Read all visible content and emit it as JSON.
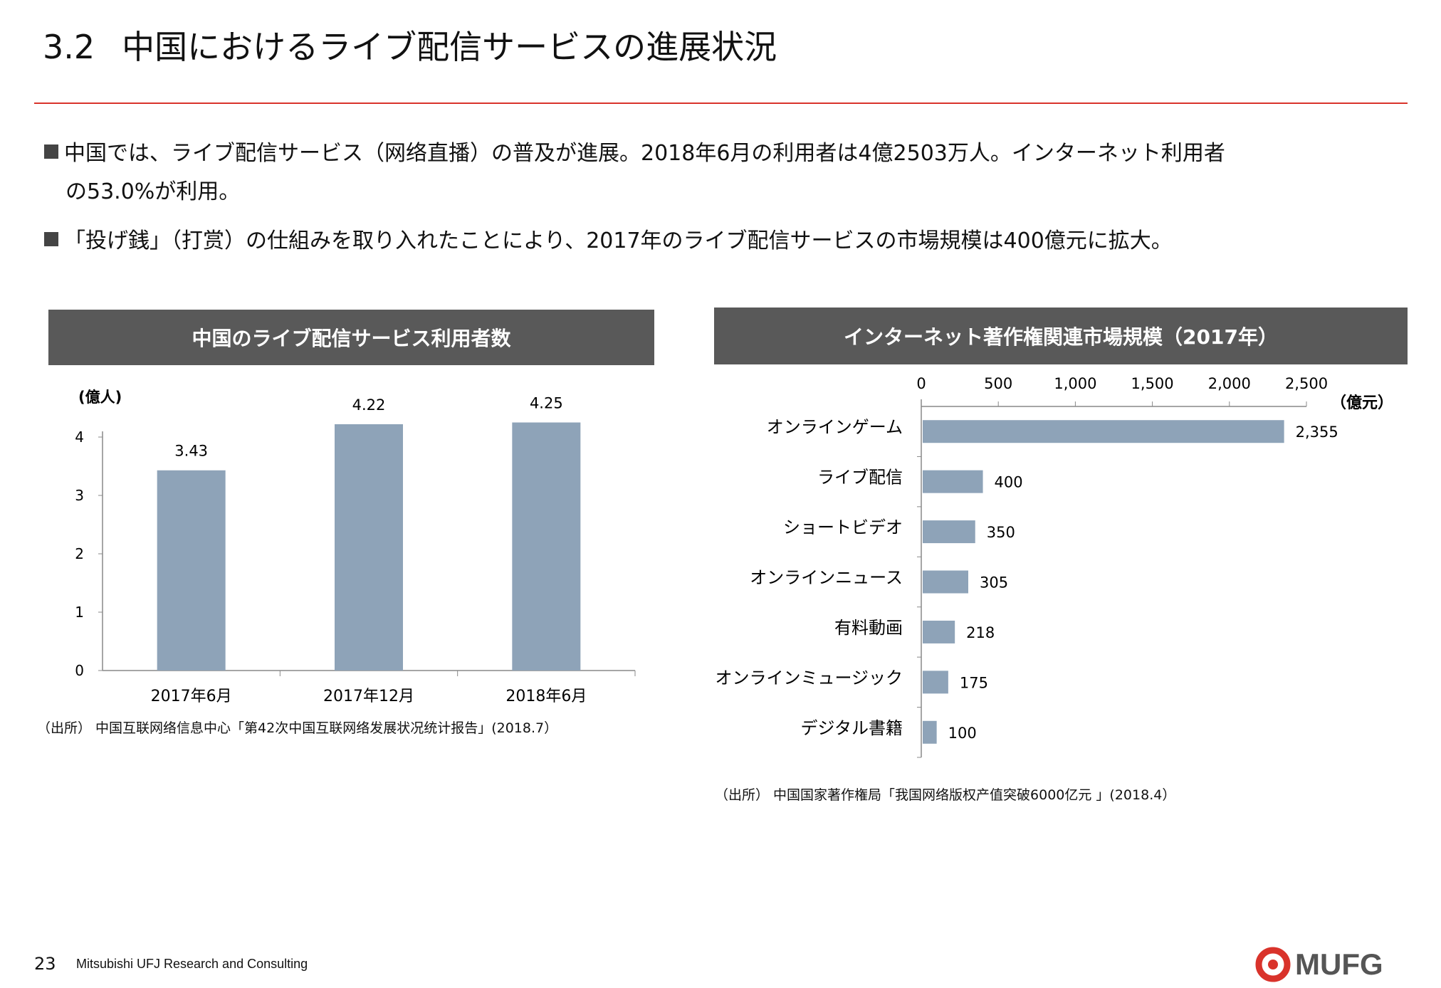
{
  "title": {
    "number": "3.2",
    "text": "中国におけるライブ配信サービスの進展状況"
  },
  "bullets": [
    {
      "line1": "中国では、ライブ配信サービス（网络直播）の普及が進展。2018年6月の利用者は4億2503万人。インターネット利用者",
      "line2": "の53.0%が利用。"
    },
    {
      "line1": "「投げ銭」（打赏）の仕組みを取り入れたことにより、2017年のライブ配信サービスの市場規模は400億元に拡大。"
    }
  ],
  "chart_data": [
    {
      "type": "bar",
      "title": "中国のライブ配信サービス利用者数",
      "ylabel": "(億人)",
      "categories": [
        "2017年6月",
        "2017年12月",
        "2018年6月"
      ],
      "values": [
        3.43,
        4.22,
        4.25
      ],
      "value_labels": [
        "3.43",
        "4.22",
        "4.25"
      ],
      "ylim": [
        0,
        4
      ],
      "yticks": [
        "0",
        "1",
        "2",
        "3",
        "4"
      ],
      "color": "#8ea3b8",
      "source": "（出所） 中国互联网络信息中心「第42次中国互联网络发展状况统计报告」(2018.7）"
    },
    {
      "type": "bar",
      "orientation": "horizontal",
      "title": "インターネット著作権関連市場規模（2017年）",
      "unit": "（億元）",
      "categories": [
        "オンラインゲーム",
        "ライブ配信",
        "ショートビデオ",
        "オンラインニュース",
        "有料動画",
        "オンラインミュージック",
        "デジタル書籍"
      ],
      "values": [
        2355,
        400,
        350,
        305,
        218,
        175,
        100
      ],
      "value_labels": [
        "2,355",
        "400",
        "350",
        "305",
        "218",
        "175",
        "100"
      ],
      "xlim": [
        0,
        2500
      ],
      "xticks": [
        "0",
        "500",
        "1,000",
        "1,500",
        "2,000",
        "2,500"
      ],
      "color": "#8ea3b8",
      "source": "（出所） 中国国家著作権局「我国网络版权产值突破6000亿元 」(2018.4）"
    }
  ],
  "footer": {
    "page": "23",
    "company": "Mitsubishi UFJ Research and Consulting",
    "logo": "MUFG",
    "logo_color": "#d9332b"
  }
}
